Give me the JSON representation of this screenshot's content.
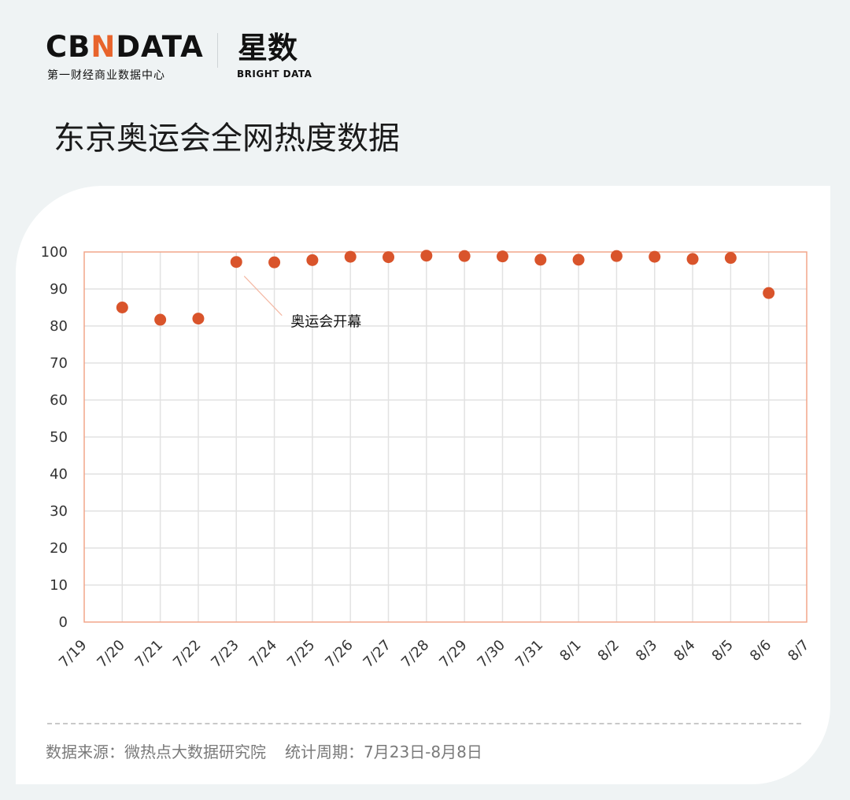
{
  "brand": {
    "cbn_logo_pre": "CB",
    "cbn_logo_n": "N",
    "cbn_logo_post": "DATA",
    "cbn_sub": "第一财经商业数据中心",
    "xs_logo": "星数",
    "xs_sub": "BRIGHT DATA"
  },
  "page_title": "东京奥运会全网热度数据",
  "footer": {
    "source": "数据来源：微热点大数据研究院",
    "period": "统计周期：7月23日-8月8日"
  },
  "colors": {
    "point": "#d9542b",
    "frame": "#f2a58a",
    "grid": "#e2e2e2",
    "annotation_line": "#f4b7a2"
  },
  "chart_data": {
    "type": "scatter",
    "title": "",
    "xlabel": "",
    "ylabel": "",
    "x": [
      "7/19",
      "7/20",
      "7/21",
      "7/22",
      "7/23",
      "7/24",
      "7/25",
      "7/26",
      "7/27",
      "7/28",
      "7/29",
      "7/30",
      "7/31",
      "8/1",
      "8/2",
      "8/3",
      "8/4",
      "8/5",
      "8/6",
      "8/7"
    ],
    "values": [
      null,
      85,
      81.7,
      82,
      97.3,
      97.2,
      97.8,
      98.7,
      98.6,
      99,
      98.9,
      98.8,
      97.9,
      97.9,
      98.9,
      98.7,
      98.1,
      98.4,
      88.9,
      null
    ],
    "ylim": [
      0,
      100
    ],
    "yticks": [
      0,
      10,
      20,
      30,
      40,
      50,
      60,
      70,
      80,
      90,
      100
    ],
    "grid": true,
    "legend": "none",
    "annotations": [
      {
        "x": "7/23",
        "text": "奥运会开幕"
      }
    ]
  }
}
